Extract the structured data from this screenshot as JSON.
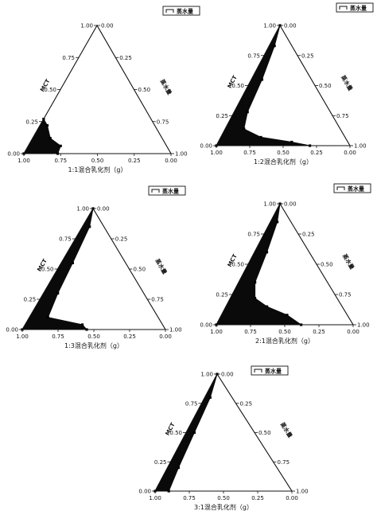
{
  "chart_data": [
    {
      "type": "ternary",
      "xlabel": "1:1混合乳化剂（g）",
      "left_axis_label": "MCT",
      "right_axis_label": "蒸水量",
      "legend": "蒸水量",
      "ticks_left": [
        "0.00",
        "0.25",
        "0.50",
        "0.75",
        "1.00"
      ],
      "ticks_bottom": [
        "1.00",
        "0.75",
        "0.50",
        "0.25",
        "0.00"
      ],
      "ticks_right": [
        "0.00",
        "0.25",
        "0.50",
        "0.75",
        "1.00"
      ],
      "region_points": [
        [
          0.0,
          0.0
        ],
        [
          0.0,
          0.27
        ],
        [
          0.05,
          0.22
        ],
        [
          0.12,
          0.12
        ],
        [
          0.22,
          0.06
        ],
        [
          0.23,
          0.0
        ]
      ]
    },
    {
      "type": "ternary",
      "xlabel": "1:2混合乳化剂（g）",
      "left_axis_label": "MCT",
      "right_axis_label": "蒸水量",
      "legend": "蒸水量",
      "ticks_left": [
        "0.00",
        "0.25",
        "0.50",
        "0.75",
        "1.00"
      ],
      "ticks_bottom": [
        "1.00",
        "0.75",
        "0.50",
        "0.25",
        "0.00"
      ],
      "ticks_right": [
        "0.00",
        "0.25",
        "0.50",
        "0.75",
        "1.00"
      ],
      "region_points": [
        [
          0.0,
          0.0
        ],
        [
          0.0,
          1.0
        ],
        [
          0.04,
          0.83
        ],
        [
          0.08,
          0.55
        ],
        [
          0.1,
          0.28
        ],
        [
          0.14,
          0.14
        ],
        [
          0.3,
          0.07
        ],
        [
          0.55,
          0.03
        ],
        [
          0.7,
          0.0
        ]
      ]
    },
    {
      "type": "ternary",
      "xlabel": "1:3混合乳化剂（g）",
      "left_axis_label": "MCT",
      "right_axis_label": "蒸水量",
      "legend": "蒸水量",
      "ticks_left": [
        "0.00",
        "0.25",
        "0.50",
        "0.75",
        "1.00"
      ],
      "ticks_bottom": [
        "1.00",
        "0.75",
        "0.50",
        "0.25",
        "0.00"
      ],
      "ticks_right": [
        "0.00",
        "0.25",
        "0.50",
        "0.75",
        "1.00"
      ],
      "region_points": [
        [
          0.0,
          0.0
        ],
        [
          0.0,
          1.0
        ],
        [
          0.05,
          0.85
        ],
        [
          0.08,
          0.55
        ],
        [
          0.1,
          0.3
        ],
        [
          0.13,
          0.1
        ],
        [
          0.4,
          0.04
        ],
        [
          0.45,
          0.0
        ]
      ]
    },
    {
      "type": "ternary",
      "xlabel": "2:1混合乳化剂（g）",
      "left_axis_label": "MCT",
      "right_axis_label": "蒸水量",
      "legend": "蒸水量",
      "ticks_left": [
        "0.00",
        "0.25",
        "0.50",
        "0.75",
        "1.00"
      ],
      "ticks_bottom": [
        "1.00",
        "0.75",
        "0.50",
        "0.25",
        "0.00"
      ],
      "ticks_right": [
        "0.00",
        "0.25",
        "0.50",
        "0.75",
        "1.00"
      ],
      "region_points": [
        [
          0.0,
          0.0
        ],
        [
          0.0,
          1.0
        ],
        [
          0.05,
          0.85
        ],
        [
          0.09,
          0.6
        ],
        [
          0.12,
          0.35
        ],
        [
          0.18,
          0.22
        ],
        [
          0.3,
          0.15
        ],
        [
          0.48,
          0.08
        ],
        [
          0.62,
          0.0
        ]
      ]
    },
    {
      "type": "ternary",
      "xlabel": "3:1混合乳化剂（g）",
      "left_axis_label": "MCT",
      "right_axis_label": "蒸水量",
      "legend": "蒸水量",
      "ticks_left": [
        "0.00",
        "0.25",
        "0.50",
        "0.75",
        "1.00"
      ],
      "ticks_bottom": [
        "1.00",
        "0.75",
        "0.50",
        "0.25",
        "0.00"
      ],
      "ticks_right": [
        "0.00",
        "0.25",
        "0.50",
        "0.75",
        "1.00"
      ],
      "region_points": [
        [
          0.0,
          0.0
        ],
        [
          0.0,
          1.0
        ],
        [
          0.04,
          0.8
        ],
        [
          0.06,
          0.5
        ],
        [
          0.08,
          0.2
        ],
        [
          0.1,
          0.0
        ]
      ]
    }
  ]
}
